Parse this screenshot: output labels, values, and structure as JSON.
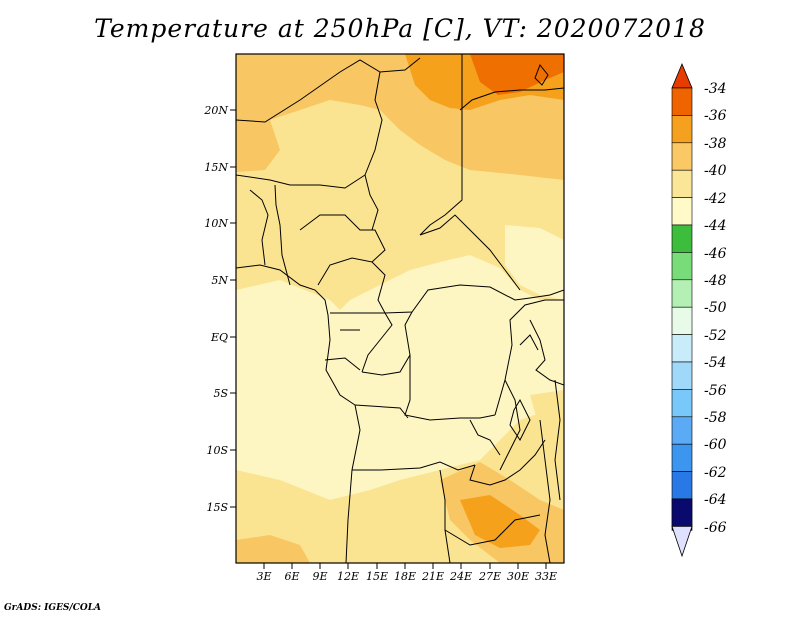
{
  "title": "Temperature at 250hPa [C], VT: 2020072018",
  "footer": "GrADS: IGES/COLA",
  "map": {
    "lat_ticks": [
      "20N",
      "15N",
      "10N",
      "5N",
      "EQ",
      "5S",
      "10S",
      "15S"
    ],
    "lon_ticks": [
      "3E",
      "6E",
      "9E",
      "12E",
      "15E",
      "18E",
      "21E",
      "24E",
      "27E",
      "30E",
      "33E"
    ]
  },
  "colorbar": {
    "labels": [
      "-34",
      "-36",
      "-38",
      "-40",
      "-42",
      "-44",
      "-46",
      "-48",
      "-50",
      "-52",
      "-54",
      "-56",
      "-58",
      "-60",
      "-62",
      "-64",
      "-66"
    ],
    "colors": [
      "#e0e0ff",
      "#0a0a6e",
      "#1e3cb4",
      "#1e5ad2",
      "#2878e6",
      "#3c96f0",
      "#5aaaf5",
      "#78c8fa",
      "#a0d8fa",
      "#c8ecfa",
      "#e8fae8",
      "#b4f0b4",
      "#78dc78",
      "#3cbe3c",
      "#fffac8",
      "#fae696",
      "#fac864",
      "#f5a01e",
      "#f06400",
      "#e63c00"
    ]
  },
  "shading_colors": {
    "c42": "#fdf5c2",
    "c40": "#fbe491",
    "c38": "#f8c663",
    "c36": "#f5a11c",
    "c34": "#ef6f00"
  }
}
